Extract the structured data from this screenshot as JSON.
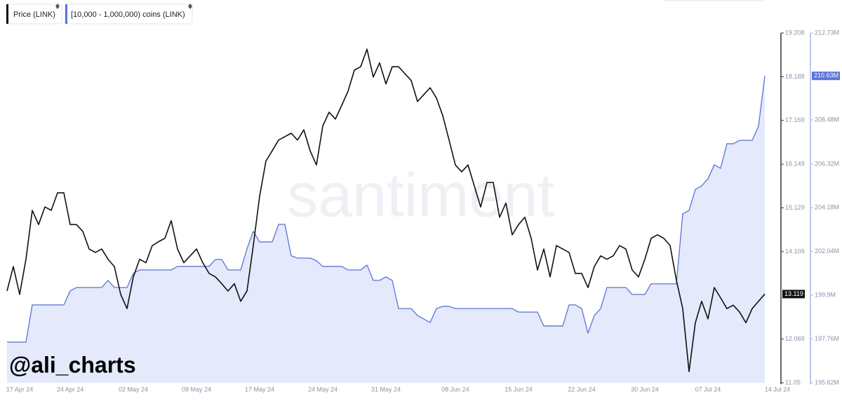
{
  "chart_data": {
    "type": "line",
    "annotation": "@ali_charts",
    "watermark": "santiment",
    "categories": [
      null,
      null,
      "17 Apr 24",
      null,
      null,
      null,
      null,
      null,
      null,
      null,
      "24 Apr 24",
      null,
      null,
      null,
      null,
      null,
      null,
      null,
      null,
      null,
      "02 May 24",
      null,
      null,
      null,
      null,
      null,
      null,
      null,
      null,
      null,
      "09 May 24",
      null,
      null,
      null,
      null,
      null,
      null,
      null,
      null,
      null,
      "17 May 24",
      null,
      null,
      null,
      null,
      null,
      null,
      null,
      null,
      null,
      "24 May 24",
      null,
      null,
      null,
      null,
      null,
      null,
      null,
      null,
      null,
      "31 May 24",
      null,
      null,
      null,
      null,
      null,
      null,
      null,
      null,
      null,
      null,
      "08 Jun 24",
      null,
      null,
      null,
      null,
      null,
      null,
      null,
      null,
      null,
      "15 Jun 24",
      null,
      null,
      null,
      null,
      null,
      null,
      null,
      null,
      null,
      "22 Jun 24",
      null,
      null,
      null,
      null,
      null,
      null,
      null,
      null,
      null,
      "30 Jun 24",
      null,
      null,
      null,
      null,
      null,
      null,
      null,
      null,
      null,
      "07 Jul 24",
      null,
      null,
      null,
      null,
      null,
      null,
      null,
      null,
      null,
      null,
      "14 Jul 24"
    ],
    "series": [
      {
        "name": "Price (LINK)",
        "color": "#111111",
        "axis": "y",
        "last_label": "13.119",
        "values": [
          13.19,
          13.76,
          13.11,
          13.93,
          15.07,
          14.74,
          15.15,
          15.07,
          15.48,
          15.48,
          14.74,
          14.74,
          14.58,
          14.17,
          14.09,
          14.17,
          13.93,
          13.76,
          13.11,
          12.78,
          13.52,
          13.93,
          13.85,
          14.25,
          14.34,
          14.42,
          14.83,
          14.17,
          13.85,
          14.01,
          14.17,
          13.85,
          13.6,
          13.52,
          13.36,
          13.19,
          13.36,
          12.95,
          13.19,
          14.25,
          15.4,
          16.22,
          16.46,
          16.71,
          16.79,
          16.87,
          16.71,
          16.95,
          16.46,
          16.13,
          17.04,
          17.36,
          17.2,
          17.52,
          17.85,
          18.34,
          18.42,
          18.83,
          18.18,
          18.51,
          18.02,
          18.42,
          18.42,
          18.26,
          18.1,
          17.61,
          17.77,
          17.93,
          17.69,
          17.28,
          16.71,
          16.13,
          15.97,
          16.13,
          15.64,
          15.15,
          15.72,
          15.72,
          14.91,
          15.24,
          14.5,
          14.74,
          14.91,
          14.42,
          13.68,
          14.17,
          13.52,
          14.25,
          14.17,
          14.09,
          13.6,
          13.6,
          13.27,
          13.76,
          14.01,
          13.93,
          14.01,
          14.25,
          14.17,
          13.68,
          13.52,
          13.93,
          14.42,
          14.5,
          14.42,
          14.25,
          13.44,
          12.78,
          11.31,
          12.45,
          12.95,
          12.54,
          13.27,
          13.03,
          12.78,
          12.86,
          12.7,
          12.45,
          12.78,
          12.95,
          13.119,
          null,
          null
        ]
      },
      {
        "name": "[10,000 - 1,000,000) coins (LINK)",
        "color": "#5b73d6",
        "fill": "#e4e9fb",
        "axis": "y2",
        "last_label": "210.63M",
        "values": [
          197.61,
          197.61,
          197.61,
          197.61,
          199.43,
          199.43,
          199.43,
          199.43,
          199.43,
          199.43,
          200.11,
          200.28,
          200.28,
          200.28,
          200.28,
          200.28,
          200.63,
          200.28,
          200.28,
          200.28,
          200.97,
          201.14,
          201.14,
          201.14,
          201.14,
          201.14,
          201.14,
          201.31,
          201.31,
          201.31,
          201.31,
          201.31,
          201.31,
          201.65,
          201.65,
          201.14,
          201.14,
          201.14,
          202.17,
          203.03,
          202.51,
          202.51,
          202.51,
          203.37,
          203.37,
          201.83,
          201.72,
          201.72,
          201.72,
          201.59,
          201.31,
          201.31,
          201.31,
          201.31,
          201.14,
          201.14,
          201.14,
          201.38,
          200.63,
          200.63,
          200.8,
          200.63,
          199.25,
          199.25,
          199.25,
          198.91,
          198.74,
          198.57,
          199.25,
          199.36,
          199.36,
          199.25,
          199.25,
          199.25,
          199.25,
          199.25,
          199.25,
          199.25,
          199.25,
          199.25,
          199.25,
          199.08,
          199.08,
          199.08,
          199.08,
          198.4,
          198.4,
          198.4,
          198.4,
          199.43,
          199.43,
          199.25,
          198.05,
          198.91,
          199.25,
          200.28,
          200.28,
          200.28,
          200.28,
          199.94,
          199.94,
          199.94,
          200.46,
          200.46,
          200.46,
          200.46,
          200.46,
          203.88,
          204.05,
          205.08,
          205.25,
          205.6,
          206.28,
          206.11,
          207.31,
          207.31,
          207.48,
          207.48,
          207.48,
          208.17,
          210.63,
          null,
          null
        ]
      }
    ],
    "ylim": [
      11.05,
      19.208
    ],
    "yticks": [
      11.05,
      12.069,
      14.109,
      15.129,
      16.149,
      17.169,
      18.188,
      19.208
    ],
    "y2lim": [
      195.62,
      212.73
    ],
    "y2ticks": [
      {
        "value": 195.62,
        "label": "195.62M"
      },
      {
        "value": 197.76,
        "label": "197.76M"
      },
      {
        "value": 199.9,
        "label": "199.9M"
      },
      {
        "value": 202.04,
        "label": "202.04M"
      },
      {
        "value": 204.18,
        "label": "204.18M"
      },
      {
        "value": 206.32,
        "label": "206.32M"
      },
      {
        "value": 208.48,
        "label": "208.48M"
      },
      {
        "value": 212.73,
        "label": "212.73M"
      }
    ]
  }
}
